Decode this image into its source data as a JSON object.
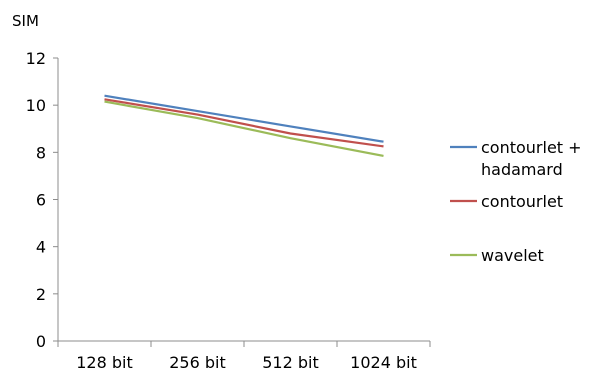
{
  "chart_data": {
    "type": "line",
    "ylabel": "SIM",
    "xlabel": "",
    "title": "",
    "categories": [
      "128 bit",
      "256 bit",
      "512 bit",
      "1024 bit"
    ],
    "ylim": [
      0,
      12
    ],
    "yticks": [
      0,
      2,
      4,
      6,
      8,
      10,
      12
    ],
    "grid": false,
    "legend_position": "right",
    "series": [
      {
        "name": "contourlet + hadamard",
        "legend_lines": [
          "contourlet +",
          "hadamard"
        ],
        "color": "#4f81bd",
        "values": [
          10.4,
          9.75,
          9.1,
          8.45
        ]
      },
      {
        "name": "contourlet",
        "legend_lines": [
          "contourlet"
        ],
        "color": "#c0504d",
        "values": [
          10.25,
          9.6,
          8.8,
          8.25
        ]
      },
      {
        "name": "wavelet",
        "legend_lines": [
          "wavelet"
        ],
        "color": "#9bbb59",
        "values": [
          10.15,
          9.45,
          8.6,
          7.85
        ]
      }
    ]
  }
}
